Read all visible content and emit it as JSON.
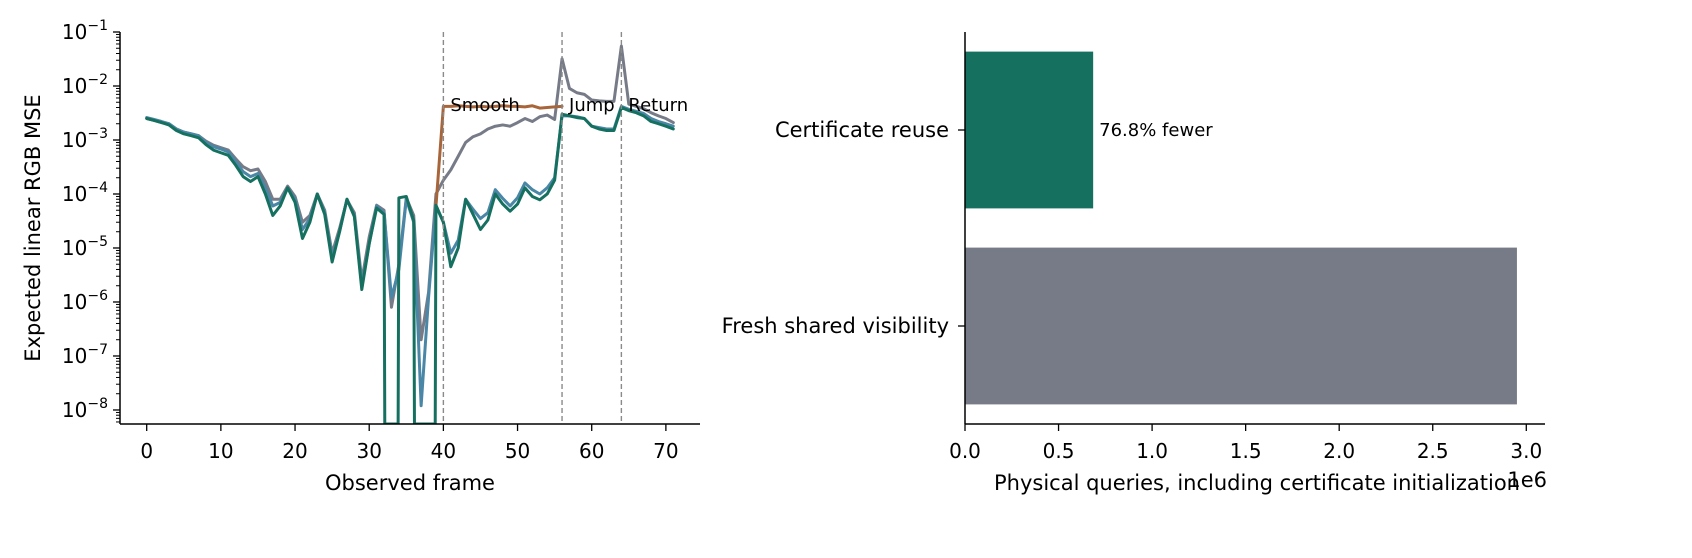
{
  "chart_data": [
    {
      "type": "line",
      "title": "",
      "xlabel": "Observed frame",
      "ylabel": "Expected linear RGB MSE",
      "yscale": "log",
      "xlim": [
        -3.6,
        74.6
      ],
      "ylim": [
        5.5e-09,
        0.1
      ],
      "x_ticks": [
        0,
        10,
        20,
        30,
        40,
        50,
        60,
        70
      ],
      "x_tick_labels": [
        "0",
        "10",
        "20",
        "30",
        "40",
        "50",
        "60",
        "70"
      ],
      "y_tick_exponents": [
        -1,
        -2,
        -3,
        -4,
        -5,
        -6,
        -7,
        -8
      ],
      "y_tick_base": "10",
      "grid": false,
      "legend": "none",
      "vlines": [
        {
          "x": 40,
          "label": "Smooth"
        },
        {
          "x": 56,
          "label": "Jump"
        },
        {
          "x": 64,
          "label": "Return"
        }
      ],
      "colors": {
        "brown": "#a8653a",
        "gray": "#767b87",
        "blue": "#4a86a6",
        "green": "#167060",
        "vline": "#8a8a8a"
      },
      "series": [
        {
          "color": "gray",
          "points": [
            [
              0,
              0.0025
            ],
            [
              1,
              0.0023
            ],
            [
              2,
              0.0021
            ],
            [
              3,
              0.002
            ],
            [
              4,
              0.0016
            ],
            [
              5,
              0.0014
            ],
            [
              6,
              0.0013
            ],
            [
              7,
              0.0012
            ],
            [
              8,
              0.00095
            ],
            [
              9,
              0.0008
            ],
            [
              10,
              0.00072
            ],
            [
              11,
              0.00065
            ],
            [
              12,
              0.00045
            ],
            [
              13,
              0.00032
            ],
            [
              14,
              0.00027
            ],
            [
              15,
              0.00029
            ],
            [
              16,
              0.00017
            ],
            [
              17,
              8e-05
            ],
            [
              18,
              8e-05
            ],
            [
              19,
              0.00014
            ],
            [
              20,
              9e-05
            ],
            [
              21,
              3e-05
            ],
            [
              22,
              4e-05
            ],
            [
              23,
              0.0001
            ],
            [
              24,
              5e-05
            ],
            [
              25,
              8e-06
            ],
            [
              26,
              2.3e-05
            ],
            [
              27,
              7.8e-05
            ],
            [
              28,
              4.5e-05
            ],
            [
              29,
              2.5e-06
            ],
            [
              30,
              1.6e-05
            ],
            [
              31,
              6.2e-05
            ],
            [
              32,
              5e-05
            ],
            [
              33,
              8e-07
            ],
            [
              34,
              5e-06
            ],
            [
              35,
              8.5e-05
            ],
            [
              36,
              4e-05
            ],
            [
              37,
              2e-07
            ],
            [
              38,
              1.5e-06
            ],
            [
              39,
              0.0001
            ],
            [
              40,
              0.00018
            ],
            [
              41,
              0.00028
            ],
            [
              42,
              0.0005
            ],
            [
              43,
              0.0009
            ],
            [
              44,
              0.00115
            ],
            [
              45,
              0.0013
            ],
            [
              46,
              0.0016
            ],
            [
              47,
              0.0018
            ],
            [
              48,
              0.0019
            ],
            [
              49,
              0.0018
            ],
            [
              50,
              0.0021
            ],
            [
              51,
              0.0025
            ],
            [
              52,
              0.0022
            ],
            [
              53,
              0.0027
            ],
            [
              54,
              0.0029
            ],
            [
              55,
              0.0024
            ],
            [
              56,
              0.032
            ],
            [
              57,
              0.009
            ],
            [
              58,
              0.0075
            ],
            [
              59,
              0.007
            ],
            [
              60,
              0.0055
            ],
            [
              61,
              0.0053
            ],
            [
              62,
              0.0052
            ],
            [
              63,
              0.0052
            ],
            [
              64,
              0.055
            ],
            [
              65,
              0.0046
            ],
            [
              66,
              0.0042
            ],
            [
              67,
              0.0038
            ],
            [
              68,
              0.0032
            ],
            [
              69,
              0.0028
            ],
            [
              70,
              0.0025
            ],
            [
              71,
              0.0021
            ]
          ]
        },
        {
          "color": "blue",
          "points": [
            [
              0,
              0.0026
            ],
            [
              1,
              0.0024
            ],
            [
              2,
              0.0022
            ],
            [
              3,
              0.002
            ],
            [
              4,
              0.0016
            ],
            [
              5,
              0.0014
            ],
            [
              6,
              0.0013
            ],
            [
              7,
              0.0012
            ],
            [
              8,
              0.0009
            ],
            [
              9,
              0.00075
            ],
            [
              10,
              0.00068
            ],
            [
              11,
              0.0006
            ],
            [
              12,
              0.0004
            ],
            [
              13,
              0.00026
            ],
            [
              14,
              0.00021
            ],
            [
              15,
              0.00024
            ],
            [
              16,
              0.00013
            ],
            [
              17,
              6e-05
            ],
            [
              18,
              7e-05
            ],
            [
              19,
              0.00013
            ],
            [
              20,
              8e-05
            ],
            [
              21,
              2.2e-05
            ],
            [
              22,
              3.5e-05
            ],
            [
              23,
              0.0001
            ],
            [
              24,
              4.5e-05
            ],
            [
              25,
              6.5e-06
            ],
            [
              26,
              2e-05
            ],
            [
              27,
              8e-05
            ],
            [
              28,
              4e-05
            ],
            [
              29,
              2e-06
            ],
            [
              30,
              1.2e-05
            ],
            [
              31,
              6e-05
            ],
            [
              32,
              4.5e-05
            ],
            [
              33,
              1.2e-06
            ],
            [
              34,
              4e-06
            ],
            [
              35,
              8e-05
            ],
            [
              36,
              3e-05
            ],
            [
              37,
              1.2e-08
            ],
            [
              38,
              1.2e-06
            ],
            [
              39,
              6e-05
            ],
            [
              40,
              3e-05
            ],
            [
              41,
              8e-06
            ],
            [
              42,
              1.4e-05
            ],
            [
              43,
              8e-05
            ],
            [
              44,
              5.2e-05
            ],
            [
              45,
              3.5e-05
            ],
            [
              46,
              4.5e-05
            ],
            [
              47,
              0.00012
            ],
            [
              48,
              8.3e-05
            ],
            [
              49,
              6e-05
            ],
            [
              50,
              8.5e-05
            ],
            [
              51,
              0.00016
            ],
            [
              52,
              0.00012
            ],
            [
              53,
              0.0001
            ],
            [
              54,
              0.00013
            ],
            [
              55,
              0.0002
            ],
            [
              56,
              0.0028
            ],
            [
              57,
              0.0028
            ],
            [
              58,
              0.0027
            ],
            [
              59,
              0.0025
            ],
            [
              60,
              0.0018
            ],
            [
              61,
              0.0017
            ],
            [
              62,
              0.0016
            ],
            [
              63,
              0.0016
            ],
            [
              64,
              0.0042
            ],
            [
              65,
              0.0037
            ],
            [
              66,
              0.0034
            ],
            [
              67,
              0.0031
            ],
            [
              68,
              0.0025
            ],
            [
              69,
              0.0022
            ],
            [
              70,
              0.002
            ],
            [
              71,
              0.0018
            ]
          ]
        },
        {
          "color": "brown",
          "points": [
            [
              39,
              6e-05
            ],
            [
              40,
              0.0042
            ],
            [
              41,
              0.0042
            ],
            [
              42,
              0.0043
            ],
            [
              43,
              0.0042
            ],
            [
              44,
              0.0041
            ],
            [
              45,
              0.0042
            ],
            [
              46,
              0.0041
            ],
            [
              47,
              0.0042
            ],
            [
              48,
              0.0043
            ],
            [
              49,
              0.0042
            ],
            [
              50,
              0.0042
            ],
            [
              51,
              0.0041
            ],
            [
              52,
              0.0043
            ],
            [
              53,
              0.0039
            ],
            [
              54,
              0.004
            ],
            [
              55,
              0.0041
            ],
            [
              56,
              0.0042
            ]
          ]
        },
        {
          "color": "green",
          "points": [
            [
              0,
              0.0025
            ],
            [
              1,
              0.0023
            ],
            [
              2,
              0.0021
            ],
            [
              3,
              0.0019
            ],
            [
              4,
              0.0015
            ],
            [
              5,
              0.0013
            ],
            [
              6,
              0.0012
            ],
            [
              7,
              0.0011
            ],
            [
              8,
              0.00082
            ],
            [
              9,
              0.00065
            ],
            [
              10,
              0.00058
            ],
            [
              11,
              0.00052
            ],
            [
              12,
              0.00034
            ],
            [
              13,
              0.00021
            ],
            [
              14,
              0.00017
            ],
            [
              15,
              0.00021
            ],
            [
              16,
              0.0001
            ],
            [
              17,
              4e-05
            ],
            [
              18,
              6e-05
            ],
            [
              19,
              0.00013
            ],
            [
              20,
              7e-05
            ],
            [
              21,
              1.5e-05
            ],
            [
              22,
              3e-05
            ],
            [
              23,
              0.0001
            ],
            [
              24,
              4.2e-05
            ],
            [
              25,
              5.5e-06
            ],
            [
              26,
              2e-05
            ],
            [
              27,
              8e-05
            ],
            [
              28,
              3.8e-05
            ],
            [
              29,
              1.7e-06
            ],
            [
              30,
              1.2e-05
            ],
            [
              31,
              5.5e-05
            ],
            [
              32,
              4.2e-05
            ],
            [
              32.1,
              5e-09
            ],
            [
              33,
              5e-09
            ],
            [
              33.9,
              5e-09
            ],
            [
              34,
              8.5e-05
            ],
            [
              35,
              9e-05
            ],
            [
              36,
              3.2e-05
            ],
            [
              36.1,
              5e-09
            ],
            [
              37,
              5e-09
            ],
            [
              38,
              5e-09
            ],
            [
              38.9,
              5e-09
            ],
            [
              39,
              6.2e-05
            ],
            [
              40,
              3e-05
            ],
            [
              41,
              4.5e-06
            ],
            [
              42,
              1e-05
            ],
            [
              43,
              8e-05
            ],
            [
              44,
              4.2e-05
            ],
            [
              45,
              2.2e-05
            ],
            [
              46,
              3.3e-05
            ],
            [
              47,
              0.0001
            ],
            [
              48,
              6.5e-05
            ],
            [
              49,
              4.8e-05
            ],
            [
              50,
              6.5e-05
            ],
            [
              51,
              0.00013
            ],
            [
              52,
              9e-05
            ],
            [
              53,
              7.8e-05
            ],
            [
              54,
              0.0001
            ],
            [
              55,
              0.00018
            ],
            [
              56,
              0.003
            ],
            [
              57,
              0.0028
            ],
            [
              58,
              0.0026
            ],
            [
              59,
              0.0025
            ],
            [
              60,
              0.0018
            ],
            [
              61,
              0.0016
            ],
            [
              62,
              0.0015
            ],
            [
              63,
              0.0015
            ],
            [
              64,
              0.004
            ],
            [
              65,
              0.0035
            ],
            [
              66,
              0.0032
            ],
            [
              67,
              0.0028
            ],
            [
              68,
              0.0022
            ],
            [
              69,
              0.002
            ],
            [
              70,
              0.0018
            ],
            [
              71,
              0.0016
            ]
          ]
        }
      ]
    },
    {
      "type": "bar",
      "orientation": "horizontal",
      "title": "",
      "xlabel": "Physical queries, including certificate initialization",
      "xlabel_offset": "1e6",
      "xlim": [
        0,
        3.1
      ],
      "x_ticks": [
        0.0,
        0.5,
        1.0,
        1.5,
        2.0,
        2.5,
        3.0
      ],
      "x_tick_labels": [
        "0.0",
        "0.5",
        "1.0",
        "1.5",
        "2.0",
        "2.5",
        "3.0"
      ],
      "categories": [
        "Certificate reuse",
        "Fresh shared visibility"
      ],
      "values": [
        0.685,
        2.95
      ],
      "bar_colors": [
        "#167060",
        "#767b87"
      ],
      "bar_labels": [
        "76.8% fewer",
        ""
      ],
      "grid": false,
      "legend": "none"
    }
  ]
}
